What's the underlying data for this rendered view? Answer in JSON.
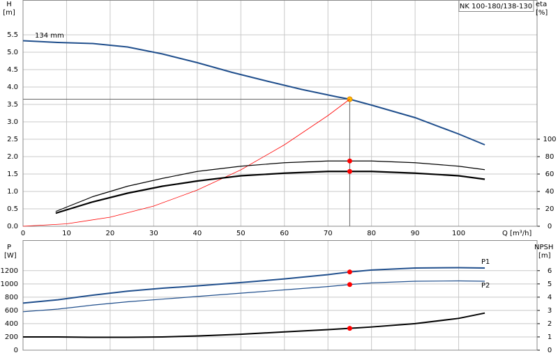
{
  "chart_data": [
    {
      "type": "line",
      "title": "NK 100-180/138-130",
      "y_label": "H",
      "y_unit": "[m]",
      "y2_label": "eta",
      "y2_unit": "[%]",
      "x_label": "Q [m³/h]",
      "xlim": [
        0,
        118
      ],
      "xticks": [
        0,
        10,
        20,
        30,
        40,
        50,
        60,
        70,
        80,
        90,
        100
      ],
      "ylim": [
        0,
        6.5
      ],
      "yticks": [
        {
          "value": 0,
          "label": "0.0"
        },
        0.5,
        {
          "value": 1,
          "label": "1.0"
        },
        1.5,
        {
          "value": 2,
          "label": "2.0"
        },
        2.5,
        {
          "value": 3,
          "label": "3.0"
        },
        3.5,
        {
          "value": 4,
          "label": "4.0"
        },
        4.5,
        {
          "value": 5,
          "label": "5.0"
        },
        5.5
      ],
      "y2lim": [
        0,
        260
      ],
      "y2ticks": [
        0,
        20,
        40,
        60,
        80,
        100
      ],
      "grid": true,
      "duty_x": 75,
      "series": [
        {
          "name": "134 mm",
          "color": "#1f4e8c",
          "width": 2,
          "duty_color": "#ffc000",
          "x": [
            0,
            8,
            16,
            24,
            32,
            40,
            48,
            56,
            64,
            72,
            75,
            80,
            90,
            100,
            106
          ],
          "values": [
            5.33,
            5.28,
            5.25,
            5.15,
            4.95,
            4.7,
            4.42,
            4.17,
            3.93,
            3.72,
            3.65,
            3.48,
            3.12,
            2.65,
            2.34
          ]
        },
        {
          "color": "#ff0000",
          "width": 0.8,
          "x": [
            0,
            10,
            20,
            30,
            40,
            50,
            60,
            70,
            75
          ],
          "values": [
            0,
            0.07,
            0.26,
            0.58,
            1.04,
            1.62,
            2.34,
            3.18,
            3.65
          ]
        },
        {
          "color": "#000000",
          "width": 1.2,
          "axis": "y2",
          "duty_color": "#ff0000",
          "x": [
            7.5,
            16,
            24,
            32,
            40,
            50,
            60,
            70,
            75,
            80,
            90,
            100,
            106
          ],
          "values": [
            17,
            34,
            46,
            55,
            63,
            69,
            73,
            75,
            75,
            75,
            73,
            69,
            65
          ]
        },
        {
          "color": "#000000",
          "width": 2.2,
          "axis": "y2",
          "duty_color": "#ff0000",
          "x": [
            7.5,
            16,
            24,
            32,
            40,
            50,
            60,
            70,
            75,
            80,
            90,
            100,
            106
          ],
          "values": [
            15,
            28,
            38,
            46,
            52,
            58,
            61,
            63,
            63,
            63,
            61,
            58,
            54
          ]
        }
      ]
    },
    {
      "type": "line",
      "y_label": "P",
      "y_unit": "[W]",
      "y2_label": "NPSH",
      "y2_unit": "[m]",
      "xlim": [
        0,
        118
      ],
      "xticks": [
        0,
        10,
        20,
        30,
        40,
        50,
        60,
        70,
        80,
        90,
        100
      ],
      "ylim": [
        0,
        1660
      ],
      "yticks": [
        0,
        200,
        400,
        600,
        800,
        1000,
        1200
      ],
      "y2lim": [
        0,
        8.3
      ],
      "y2ticks": [
        0,
        1,
        2,
        3,
        4,
        5,
        6
      ],
      "grid": true,
      "duty_x": 75,
      "series": [
        {
          "name": "P1",
          "color": "#1f4e8c",
          "width": 2,
          "duty_color": "#ff0000",
          "x": [
            0,
            8,
            16,
            24,
            32,
            40,
            50,
            60,
            70,
            75,
            80,
            90,
            100,
            106
          ],
          "values": [
            710,
            760,
            830,
            890,
            935,
            970,
            1020,
            1075,
            1140,
            1180,
            1210,
            1240,
            1245,
            1240
          ]
        },
        {
          "name": "P2",
          "color": "#1f4e8c",
          "width": 1.2,
          "duty_color": "#ff0000",
          "x": [
            0,
            8,
            16,
            24,
            32,
            40,
            50,
            60,
            70,
            75,
            80,
            90,
            100,
            106
          ],
          "values": [
            580,
            620,
            680,
            730,
            770,
            810,
            860,
            910,
            960,
            990,
            1015,
            1040,
            1045,
            1040
          ]
        },
        {
          "color": "#000000",
          "width": 2,
          "axis": "y2",
          "duty_color": "#ff0000",
          "x": [
            0,
            8,
            16,
            24,
            32,
            40,
            50,
            60,
            70,
            75,
            80,
            90,
            100,
            106
          ],
          "values": [
            1.0,
            1.0,
            0.97,
            0.97,
            1.0,
            1.07,
            1.2,
            1.38,
            1.55,
            1.65,
            1.75,
            2.0,
            2.4,
            2.8
          ]
        }
      ]
    }
  ]
}
